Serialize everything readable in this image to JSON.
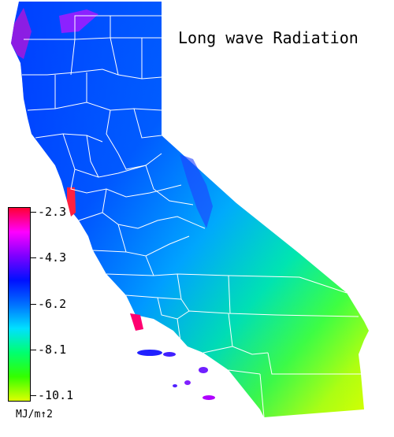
{
  "title": "Long wave Radiation",
  "legend": {
    "units": "MJ/m↑2",
    "ticks": [
      {
        "label": "-2.3",
        "value": -2.3
      },
      {
        "label": "-4.3",
        "value": -4.3
      },
      {
        "label": "-6.2",
        "value": -6.2
      },
      {
        "label": "-8.1",
        "value": -8.1
      },
      {
        "label": "-10.1",
        "value": -10.1
      }
    ],
    "gradient_colors": [
      "#ff0033",
      "#ff00ff",
      "#7d00ff",
      "#0010ff",
      "#0070ff",
      "#00e0ff",
      "#00ff70",
      "#33ff00",
      "#ddff00"
    ]
  },
  "map_colors": {
    "high": "#3300ff",
    "mid_high": "#0055ff",
    "mid": "#00c8ff",
    "mid_low": "#00ff66",
    "low": "#ccff00",
    "coast_peak": "#ff0066",
    "boundary": "#ffffff"
  }
}
